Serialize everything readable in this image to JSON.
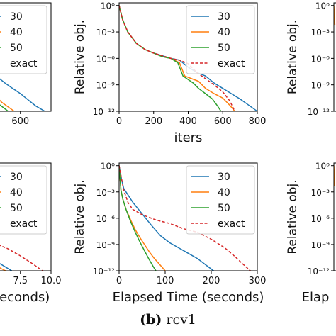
{
  "caption": {
    "label": "(b)",
    "dataset": "rcv1"
  },
  "colors": {
    "30": "#1f77b4",
    "40": "#ff7f0e",
    "50": "#2ca02c",
    "exact": "#d62728"
  },
  "chart_data": [
    {
      "id": "iters-main",
      "type": "line",
      "xlabel": "iters",
      "ylabel": "Relative obj.",
      "xlim": [
        0,
        800
      ],
      "ylim_log10": [
        -12,
        0.3
      ],
      "yscale": "log",
      "xticks": [
        0,
        200,
        400,
        600,
        800
      ],
      "xtick_labels": [
        "0",
        "200",
        "400",
        "600",
        "800"
      ],
      "yticks": [
        0,
        -3,
        -6,
        -9,
        -12
      ],
      "ytick_labels": [
        "10⁰",
        "10⁻³",
        "10⁻⁶",
        "10⁻⁹",
        "10⁻¹²"
      ],
      "legend": {
        "placement": "top-right",
        "entries": [
          "30",
          "40",
          "50",
          "exact"
        ]
      },
      "series": [
        {
          "name": "30",
          "style": "solid",
          "x": [
            0,
            20,
            50,
            100,
            150,
            200,
            250,
            300,
            350,
            400,
            450,
            500,
            550,
            600,
            650,
            700,
            750,
            800
          ],
          "y": [
            0,
            -1.6,
            -3,
            -4.3,
            -5,
            -5.4,
            -5.7,
            -6,
            -6.2,
            -7,
            -7.6,
            -8,
            -8.8,
            -9.4,
            -10,
            -10.6,
            -11.3,
            -12
          ]
        },
        {
          "name": "40",
          "style": "solid",
          "x": [
            0,
            20,
            50,
            100,
            150,
            200,
            250,
            300,
            350,
            380,
            420,
            460,
            500,
            550,
            600,
            640,
            670
          ],
          "y": [
            0,
            -1.6,
            -3,
            -4.3,
            -5,
            -5.4,
            -5.8,
            -6,
            -6.5,
            -8,
            -8.3,
            -8.6,
            -9.4,
            -10,
            -10.5,
            -11.3,
            -12
          ]
        },
        {
          "name": "50",
          "style": "solid",
          "x": [
            0,
            20,
            50,
            100,
            150,
            200,
            250,
            300,
            340,
            370,
            400,
            430,
            460,
            500,
            540,
            570,
            590
          ],
          "y": [
            0,
            -1.6,
            -3,
            -4.3,
            -5,
            -5.4,
            -5.8,
            -6,
            -6.5,
            -8,
            -8.4,
            -8.8,
            -9.4,
            -10,
            -10.6,
            -11.4,
            -12
          ]
        },
        {
          "name": "exact",
          "style": "dashed",
          "x": [
            0,
            20,
            50,
            100,
            150,
            200,
            250,
            300,
            350,
            400,
            450,
            500,
            550,
            600,
            640,
            670
          ],
          "y": [
            0,
            -1.6,
            -3,
            -4.3,
            -5,
            -5.4,
            -5.7,
            -6,
            -6.2,
            -6.6,
            -7.6,
            -8.3,
            -9,
            -9.8,
            -10.8,
            -12
          ]
        }
      ]
    },
    {
      "id": "time-main",
      "type": "line",
      "xlabel": "Elapsed Time (seconds)",
      "ylabel": "Relative obj.",
      "xlim": [
        0,
        300
      ],
      "ylim_log10": [
        -12,
        0.3
      ],
      "yscale": "log",
      "xticks": [
        0,
        100,
        200,
        300
      ],
      "xtick_labels": [
        "0",
        "100",
        "200",
        "300"
      ],
      "yticks": [
        0,
        -3,
        -6,
        -9,
        -12
      ],
      "ytick_labels": [
        "10⁰",
        "10⁻³",
        "10⁻⁶",
        "10⁻⁹",
        "10⁻¹²"
      ],
      "legend": {
        "placement": "top-right",
        "entries": [
          "30",
          "40",
          "50",
          "exact"
        ]
      },
      "series": [
        {
          "name": "30",
          "style": "solid",
          "x": [
            0,
            5,
            10,
            20,
            30,
            50,
            70,
            90,
            110,
            130,
            150,
            170,
            190,
            205
          ],
          "y": [
            0,
            -1.5,
            -2.6,
            -3.4,
            -4.2,
            -5.5,
            -6.8,
            -8,
            -8.8,
            -9.4,
            -10,
            -10.6,
            -11.4,
            -12
          ]
        },
        {
          "name": "40",
          "style": "solid",
          "x": [
            0,
            4,
            8,
            15,
            25,
            35,
            45,
            55,
            65,
            75,
            85,
            95,
            100
          ],
          "y": [
            0,
            -2.8,
            -3.8,
            -5,
            -6.2,
            -7.3,
            -8.2,
            -9,
            -9.8,
            -10.5,
            -11.1,
            -11.7,
            -12
          ]
        },
        {
          "name": "50",
          "style": "solid",
          "x": [
            0,
            4,
            8,
            15,
            25,
            35,
            45,
            55,
            65,
            75,
            80
          ],
          "y": [
            0,
            -2.8,
            -3.8,
            -5,
            -6.4,
            -7.6,
            -8.7,
            -9.7,
            -10.7,
            -11.6,
            -12
          ]
        },
        {
          "name": "exact",
          "style": "dashed",
          "x": [
            0,
            10,
            20,
            30,
            50,
            80,
            110,
            140,
            170,
            200,
            230,
            250,
            270,
            285
          ],
          "y": [
            0,
            -2.8,
            -4.3,
            -5,
            -5.6,
            -6.2,
            -6.6,
            -7.2,
            -7.6,
            -8.4,
            -9.4,
            -10.3,
            -11.3,
            -12
          ]
        }
      ]
    },
    {
      "id": "iters-left-partial",
      "type": "line",
      "xlabel": "",
      "ylabel": "",
      "xlim": [
        0,
        800
      ],
      "ylim_log10": [
        -12,
        0.3
      ],
      "yscale": "log",
      "xticks": [
        600
      ],
      "xtick_labels": [
        "600"
      ],
      "legend": {
        "placement": "top-right",
        "entries": [
          "30",
          "40",
          "50",
          "exact"
        ]
      },
      "series": [
        {
          "name": "30",
          "style": "solid",
          "x": [
            400,
            450,
            500,
            550,
            600,
            650,
            700,
            760
          ],
          "y": [
            -7.5,
            -8.1,
            -8.8,
            -9.4,
            -10,
            -10.7,
            -11.4,
            -12
          ]
        },
        {
          "name": "40",
          "style": "solid",
          "x": [
            400,
            440,
            480,
            520,
            560
          ],
          "y": [
            -9.6,
            -10.3,
            -11,
            -11.5,
            -12
          ]
        },
        {
          "name": "50",
          "style": "solid",
          "x": [
            400,
            430,
            460,
            490,
            520
          ],
          "y": [
            -10,
            -10.6,
            -11.2,
            -11.6,
            -12
          ]
        }
      ]
    },
    {
      "id": "time-left-partial",
      "type": "line",
      "xlabel": "seconds)",
      "ylabel": "",
      "xlim": [
        0,
        10
      ],
      "ylim_log10": [
        -12,
        0.3
      ],
      "yscale": "log",
      "xticks": [
        7.5,
        10.0
      ],
      "xtick_labels": [
        "7.5",
        "10.0"
      ],
      "legend": {
        "placement": "top-right",
        "entries": [
          "30",
          "40",
          "50",
          "exact"
        ]
      },
      "series": [
        {
          "name": "30",
          "style": "solid",
          "x": [
            5,
            5.6,
            6.2,
            6.8
          ],
          "y": [
            -10.5,
            -11,
            -11.5,
            -12
          ]
        },
        {
          "name": "40",
          "style": "solid",
          "x": [
            5,
            5.5,
            6,
            6.3
          ],
          "y": [
            -11,
            -11.4,
            -11.8,
            -12
          ]
        },
        {
          "name": "exact",
          "style": "dashed",
          "x": [
            5,
            6.5,
            7.5,
            8.5,
            9.3
          ],
          "y": [
            -8.6,
            -9.5,
            -10.3,
            -11.2,
            -12
          ]
        }
      ]
    },
    {
      "id": "right-partial-top",
      "type": "line",
      "xlabel": "",
      "ylabel": "Relative obj.",
      "xlim": [
        0,
        800
      ],
      "ylim_log10": [
        -12,
        0.3
      ],
      "yscale": "log",
      "yticks": [
        0,
        -3,
        -6,
        -9,
        -12
      ],
      "ytick_labels": [
        "10⁰",
        "10⁻³",
        "10⁻⁶",
        "10⁻⁹",
        "10⁻¹²"
      ],
      "series": [
        {
          "name": "40",
          "style": "solid",
          "x": [
            0,
            3,
            6
          ],
          "y": [
            0,
            -1.3,
            -2.2
          ]
        }
      ]
    },
    {
      "id": "right-partial-bottom",
      "type": "line",
      "xlabel": "Elap",
      "ylabel": "Relative obj.",
      "xlim": [
        0,
        300
      ],
      "ylim_log10": [
        -12,
        0.3
      ],
      "yscale": "log",
      "yticks": [
        0,
        -3,
        -6,
        -9,
        -12
      ],
      "ytick_labels": [
        "10⁰",
        "10⁻³",
        "10⁻⁶",
        "10⁻⁹",
        "10⁻¹²"
      ],
      "series": [
        {
          "name": "40",
          "style": "solid",
          "x": [
            0,
            1,
            2
          ],
          "y": [
            0,
            -1.3,
            -2.3
          ]
        }
      ]
    }
  ]
}
